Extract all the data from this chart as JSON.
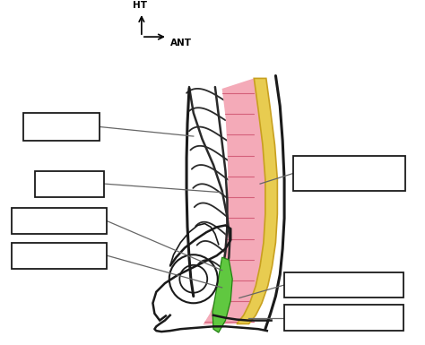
{
  "bg_color": "#ffffff",
  "outline_color": "#1a1a1a",
  "rib_color": "#2a2a2a",
  "pink_color": "#f4aab8",
  "pink_stripe_color": "#d4607a",
  "yellow_color": "#e8cc50",
  "yellow_edge": "#c8a020",
  "green_color": "#60c840",
  "green_edge": "#208010",
  "line_color": "#666666"
}
